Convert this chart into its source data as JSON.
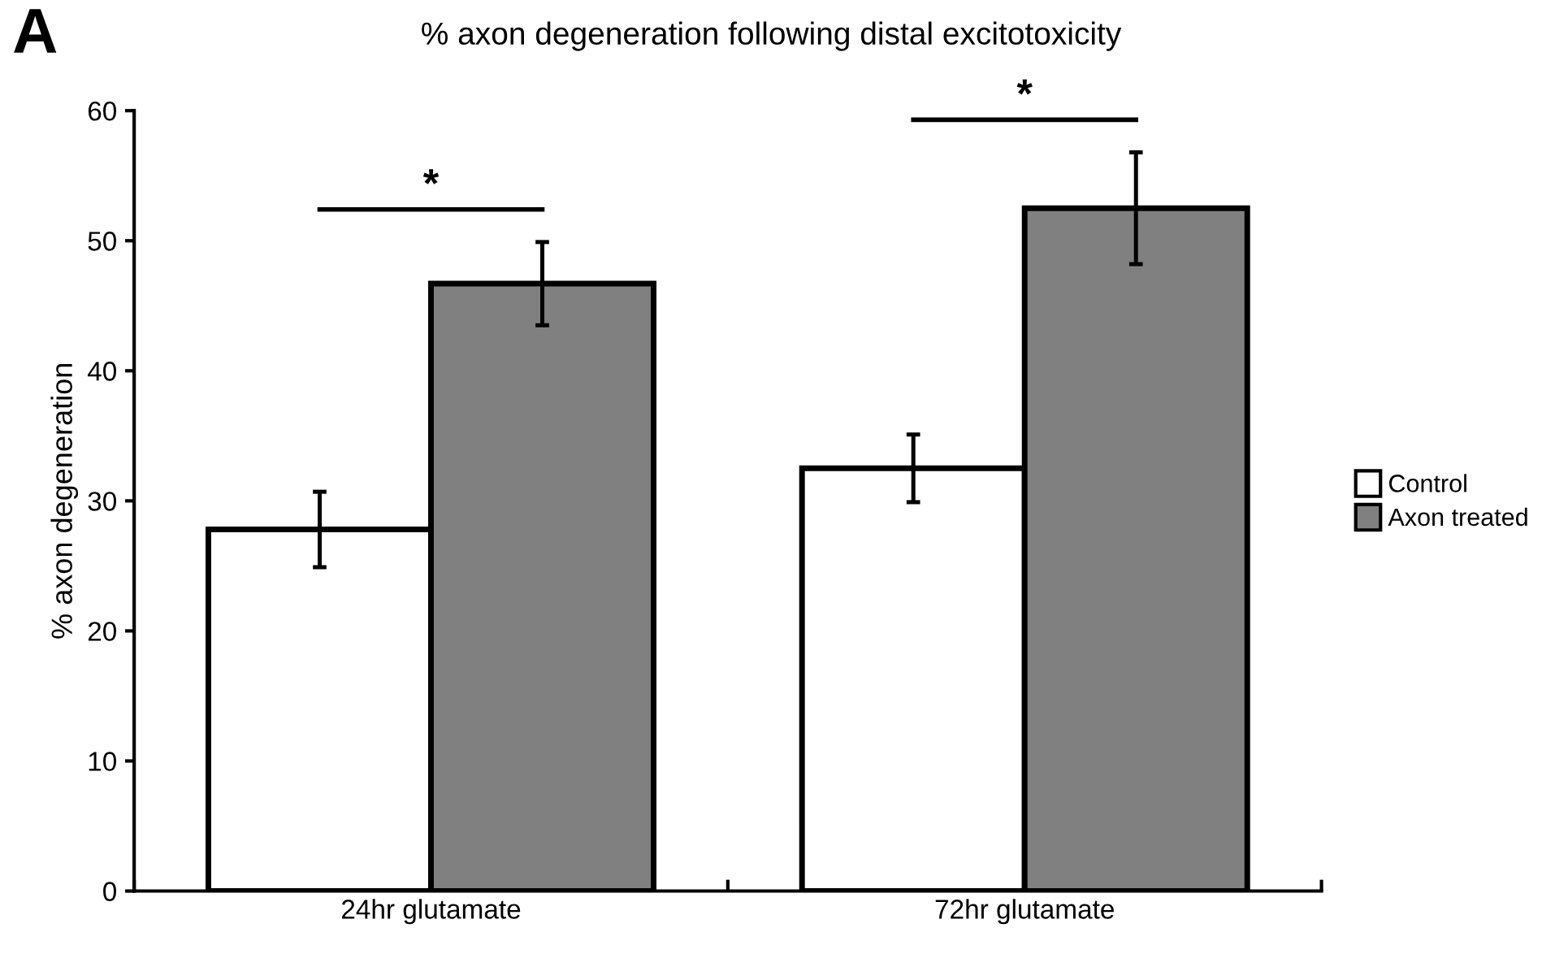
{
  "chart_data": {
    "type": "bar",
    "title": "% axon degeneration following distal excitotoxicity",
    "ylabel": "% axon degeneration",
    "categories": [
      "24hr glutamate",
      "72hr glutamate"
    ],
    "series": [
      {
        "name": "Control",
        "color": "#ffffff",
        "values": [
          27.8,
          32.5
        ],
        "errors": [
          2.9,
          2.6
        ]
      },
      {
        "name": "Axon treated",
        "color": "#808080",
        "values": [
          46.7,
          52.5
        ],
        "errors": [
          3.2,
          4.3
        ]
      }
    ],
    "ylim": [
      0,
      60
    ],
    "yticks": [
      0,
      10,
      20,
      30,
      40,
      50,
      60
    ],
    "legend": "right",
    "grid": false,
    "annotations": [
      "A",
      "*",
      "*"
    ]
  }
}
